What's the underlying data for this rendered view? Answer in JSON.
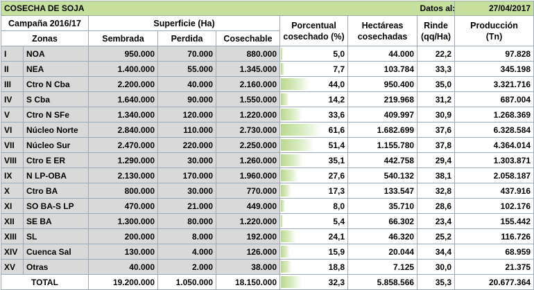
{
  "title": "COSECHA DE SOJA",
  "date_label": "Datos al:",
  "date_value": "27/04/2017",
  "campaign": "Campaña 2016/17",
  "headers": {
    "superficie": "Superficie (Ha)",
    "zonas": "Zonas",
    "sembrada": "Sembrada",
    "perdida": "Perdida",
    "cosechable": "Cosechable",
    "porcentual_1": "Porcentual",
    "porcentual_2": "cosechado (%)",
    "hectareas_1": "Hectáreas",
    "hectareas_2": "cosechadas",
    "rinde_1": "Rinde",
    "rinde_2": "(qq/Ha)",
    "produccion_1": "Producción",
    "produccion_2": "(Tn)"
  },
  "rows": [
    {
      "num": "I",
      "zona": "NOA",
      "sembrada": "950.000",
      "perdida": "70.000",
      "cosechable": "880.000",
      "pct": "5,0",
      "pct_value": 5.0,
      "hectareas": "44.000",
      "rinde": "22,2",
      "produccion": "97.828"
    },
    {
      "num": "II",
      "zona": "NEA",
      "sembrada": "1.400.000",
      "perdida": "55.000",
      "cosechable": "1.345.000",
      "pct": "7,7",
      "pct_value": 7.7,
      "hectareas": "103.784",
      "rinde": "33,3",
      "produccion": "345.198"
    },
    {
      "num": "III",
      "zona": "Ctro N Cba",
      "sembrada": "2.200.000",
      "perdida": "40.000",
      "cosechable": "2.160.000",
      "pct": "44,0",
      "pct_value": 44.0,
      "hectareas": "950.400",
      "rinde": "35,0",
      "produccion": "3.321.716"
    },
    {
      "num": "IV",
      "zona": "S Cba",
      "sembrada": "1.640.000",
      "perdida": "90.000",
      "cosechable": "1.550.000",
      "pct": "14,2",
      "pct_value": 14.2,
      "hectareas": "219.968",
      "rinde": "31,2",
      "produccion": "687.004"
    },
    {
      "num": "V",
      "zona": "Ctro N SFe",
      "sembrada": "1.340.000",
      "perdida": "120.000",
      "cosechable": "1.220.000",
      "pct": "33,6",
      "pct_value": 33.6,
      "hectareas": "409.997",
      "rinde": "30,9",
      "produccion": "1.268.369"
    },
    {
      "num": "VI",
      "zona": "Núcleo Norte",
      "sembrada": "2.840.000",
      "perdida": "110.000",
      "cosechable": "2.730.000",
      "pct": "61,6",
      "pct_value": 61.6,
      "hectareas": "1.682.699",
      "rinde": "37,6",
      "produccion": "6.328.584"
    },
    {
      "num": "VII",
      "zona": "Núcleo Sur",
      "sembrada": "2.470.000",
      "perdida": "220.000",
      "cosechable": "2.250.000",
      "pct": "51,4",
      "pct_value": 51.4,
      "hectareas": "1.155.780",
      "rinde": "37,8",
      "produccion": "4.364.014"
    },
    {
      "num": "VIII",
      "zona": "Ctro E ER",
      "sembrada": "1.290.000",
      "perdida": "30.000",
      "cosechable": "1.260.000",
      "pct": "35,1",
      "pct_value": 35.1,
      "hectareas": "442.758",
      "rinde": "29,4",
      "produccion": "1.303.871"
    },
    {
      "num": "IX",
      "zona": "N LP-OBA",
      "sembrada": "2.130.000",
      "perdida": "170.000",
      "cosechable": "1.960.000",
      "pct": "27,6",
      "pct_value": 27.6,
      "hectareas": "540.132",
      "rinde": "38,1",
      "produccion": "2.058.187"
    },
    {
      "num": "X",
      "zona": "Ctro BA",
      "sembrada": "800.000",
      "perdida": "30.000",
      "cosechable": "770.000",
      "pct": "17,3",
      "pct_value": 17.3,
      "hectareas": "133.547",
      "rinde": "32,8",
      "produccion": "437.916"
    },
    {
      "num": "XI",
      "zona": "SO BA-S LP",
      "sembrada": "470.000",
      "perdida": "21.000",
      "cosechable": "449.000",
      "pct": "8,0",
      "pct_value": 8.0,
      "hectareas": "35.710",
      "rinde": "28,6",
      "produccion": "102.176"
    },
    {
      "num": "XII",
      "zona": "SE BA",
      "sembrada": "1.300.000",
      "perdida": "80.000",
      "cosechable": "1.220.000",
      "pct": "5,4",
      "pct_value": 5.4,
      "hectareas": "66.302",
      "rinde": "23,4",
      "produccion": "155.442"
    },
    {
      "num": "XIII",
      "zona": "SL",
      "sembrada": "200.000",
      "perdida": "8.000",
      "cosechable": "192.000",
      "pct": "24,1",
      "pct_value": 24.1,
      "hectareas": "46.320",
      "rinde": "25,2",
      "produccion": "116.726"
    },
    {
      "num": "XIV",
      "zona": "Cuenca Sal",
      "sembrada": "130.000",
      "perdida": "4.000",
      "cosechable": "126.000",
      "pct": "15,9",
      "pct_value": 15.9,
      "hectareas": "20.044",
      "rinde": "34,4",
      "produccion": "68.959"
    },
    {
      "num": "XV",
      "zona": "Otras",
      "sembrada": "40.000",
      "perdida": "2.000",
      "cosechable": "38.000",
      "pct": "18,8",
      "pct_value": 18.8,
      "hectareas": "7.125",
      "rinde": "30,0",
      "produccion": "21.375"
    }
  ],
  "total": {
    "label": "TOTAL",
    "sembrada": "19.200.000",
    "perdida": "1.050.000",
    "cosechable": "18.150.000",
    "pct": "32,3",
    "pct_value": 32.3,
    "hectareas": "5.858.566",
    "rinde": "35,3",
    "produccion": "20.677.364"
  },
  "colors": {
    "title_bg": "#c6df9c",
    "row_shade": "#d9d9d9",
    "bar": "#b9d98f",
    "grid": "#9aa8b8"
  }
}
